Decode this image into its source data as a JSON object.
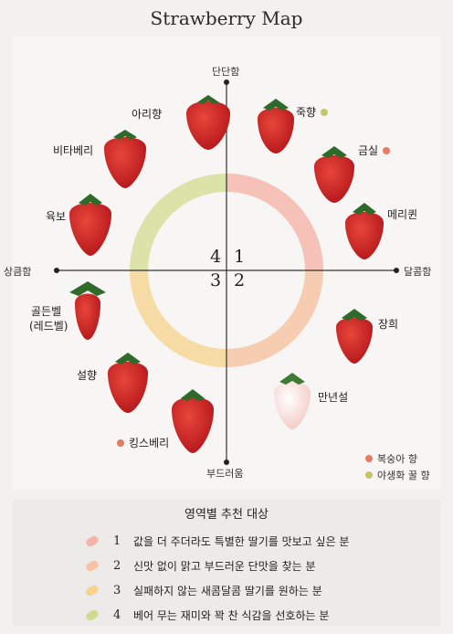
{
  "title": "Strawberry Map",
  "axes": {
    "top": "단단함",
    "bottom": "부드러움",
    "left": "상큼함",
    "right": "달콤함"
  },
  "quadrants": [
    "1",
    "2",
    "3",
    "4"
  ],
  "colors": {
    "q1": "#f6c2b8",
    "q2": "#f7cdb2",
    "q3": "#f7dba4",
    "q4": "#dce3a9",
    "peach_dot": "#e87a5f",
    "wildflower_dot": "#c5c46a"
  },
  "strawberries": [
    {
      "name": "아리향"
    },
    {
      "name": "비타베리"
    },
    {
      "name": "육보"
    },
    {
      "name": "골든벨"
    },
    {
      "name": "(레드벨)"
    },
    {
      "name": "설향"
    },
    {
      "name": "킹스베리"
    },
    {
      "name": "죽향"
    },
    {
      "name": "금실"
    },
    {
      "name": "메리퀸"
    },
    {
      "name": "장희"
    },
    {
      "name": "만년설"
    }
  ],
  "legend": [
    {
      "label": "복숭아 향",
      "icon": "peach-dot"
    },
    {
      "label": "야생화 꿀 향",
      "icon": "wildflower-dot"
    }
  ],
  "recommendation": {
    "title": "영역별 추천 대상",
    "rows": [
      {
        "num": "1",
        "text": "값을 더 주더라도 특별한 딸기를 맛보고 싶은 분"
      },
      {
        "num": "2",
        "text": "신맛 없이 맑고 부드러운 단맛을 찾는 분"
      },
      {
        "num": "3",
        "text": "실패하지 않는 새콤달콤 딸기를 원하는 분"
      },
      {
        "num": "4",
        "text": "베어 무는 재미와 꽉 찬 식감을 선호하는 분"
      }
    ]
  }
}
